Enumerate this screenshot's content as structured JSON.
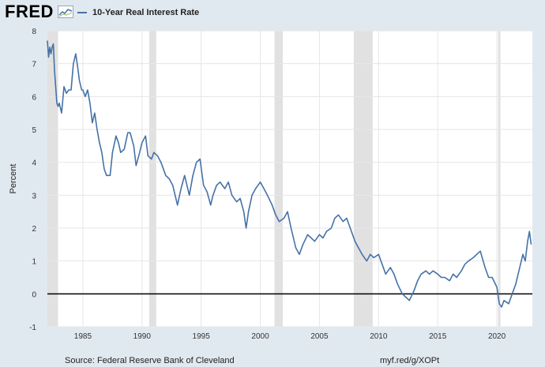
{
  "header": {
    "logo_text": "FRED",
    "series_name": "10-Year Real Interest Rate",
    "series_color": "#4572a7"
  },
  "footer": {
    "source": "Source: Federal Reserve Bank of Cleveland",
    "link": "myf.red/g/XOPt"
  },
  "chart_data": {
    "type": "line",
    "title": "",
    "xlabel": "",
    "ylabel": "Percent",
    "xlim": [
      1982.0,
      2023.0
    ],
    "ylim": [
      -1,
      8
    ],
    "yticks": [
      "-1",
      "0",
      "1",
      "2",
      "3",
      "4",
      "5",
      "6",
      "7",
      "8"
    ],
    "xticks": [
      "1985",
      "1990",
      "1995",
      "2000",
      "2005",
      "2010",
      "2015",
      "2020"
    ],
    "grid": true,
    "zero_line": true,
    "recessions": [
      [
        1982.0,
        1982.9
      ],
      [
        1990.6,
        1991.2
      ],
      [
        2001.2,
        2001.9
      ],
      [
        2007.9,
        2009.5
      ],
      [
        2020.1,
        2020.3
      ]
    ],
    "series": [
      {
        "name": "10-Year Real Interest Rate",
        "x": [
          1982.0,
          1982.1,
          1982.2,
          1982.3,
          1982.4,
          1982.5,
          1982.6,
          1982.7,
          1982.8,
          1982.9,
          1983.0,
          1983.2,
          1983.4,
          1983.6,
          1983.8,
          1984.0,
          1984.2,
          1984.4,
          1984.6,
          1984.7,
          1984.9,
          1985.0,
          1985.2,
          1985.4,
          1985.6,
          1985.8,
          1986.0,
          1986.2,
          1986.4,
          1986.6,
          1986.8,
          1987.0,
          1987.3,
          1987.5,
          1987.8,
          1988.0,
          1988.2,
          1988.5,
          1988.8,
          1989.0,
          1989.3,
          1989.5,
          1989.8,
          1990.0,
          1990.3,
          1990.5,
          1990.8,
          1991.0,
          1991.3,
          1991.6,
          1992.0,
          1992.3,
          1992.6,
          1993.0,
          1993.3,
          1993.6,
          1994.0,
          1994.3,
          1994.6,
          1994.9,
          1995.2,
          1995.5,
          1995.8,
          1996.0,
          1996.3,
          1996.6,
          1997.0,
          1997.3,
          1997.6,
          1998.0,
          1998.3,
          1998.6,
          1998.8,
          1999.0,
          1999.3,
          1999.6,
          2000.0,
          2000.3,
          2000.6,
          2001.0,
          2001.3,
          2001.6,
          2002.0,
          2002.3,
          2002.6,
          2003.0,
          2003.3,
          2003.6,
          2004.0,
          2004.3,
          2004.6,
          2005.0,
          2005.3,
          2005.6,
          2006.0,
          2006.3,
          2006.6,
          2007.0,
          2007.3,
          2007.6,
          2008.0,
          2008.3,
          2008.6,
          2009.0,
          2009.3,
          2009.6,
          2010.0,
          2010.3,
          2010.6,
          2011.0,
          2011.3,
          2011.6,
          2012.0,
          2012.3,
          2012.6,
          2013.0,
          2013.3,
          2013.6,
          2014.0,
          2014.3,
          2014.6,
          2015.0,
          2015.3,
          2015.6,
          2016.0,
          2016.3,
          2016.6,
          2017.0,
          2017.3,
          2017.6,
          2018.0,
          2018.3,
          2018.6,
          2019.0,
          2019.3,
          2019.6,
          2020.0,
          2020.2,
          2020.4,
          2020.6,
          2021.0,
          2021.3,
          2021.6,
          2022.0,
          2022.2,
          2022.4,
          2022.6,
          2022.75,
          2022.9
        ],
        "values": [
          7.7,
          7.2,
          7.5,
          7.3,
          7.5,
          7.6,
          6.8,
          6.3,
          5.8,
          5.7,
          5.8,
          5.5,
          6.3,
          6.1,
          6.2,
          6.2,
          7.0,
          7.3,
          6.8,
          6.5,
          6.2,
          6.2,
          6.0,
          6.2,
          5.8,
          5.2,
          5.5,
          5.0,
          4.6,
          4.3,
          3.8,
          3.6,
          3.6,
          4.3,
          4.8,
          4.6,
          4.3,
          4.4,
          4.9,
          4.9,
          4.5,
          3.9,
          4.3,
          4.6,
          4.8,
          4.2,
          4.1,
          4.3,
          4.2,
          4.0,
          3.6,
          3.5,
          3.3,
          2.7,
          3.2,
          3.6,
          3.0,
          3.6,
          4.0,
          4.1,
          3.3,
          3.1,
          2.7,
          3.0,
          3.3,
          3.4,
          3.2,
          3.4,
          3.0,
          2.8,
          2.9,
          2.5,
          2.0,
          2.5,
          3.0,
          3.2,
          3.4,
          3.2,
          3.0,
          2.7,
          2.4,
          2.2,
          2.3,
          2.5,
          2.0,
          1.4,
          1.2,
          1.5,
          1.8,
          1.7,
          1.6,
          1.8,
          1.7,
          1.9,
          2.0,
          2.3,
          2.4,
          2.2,
          2.3,
          2.0,
          1.6,
          1.4,
          1.2,
          1.0,
          1.2,
          1.1,
          1.2,
          0.9,
          0.6,
          0.8,
          0.6,
          0.3,
          0.0,
          -0.1,
          -0.2,
          0.1,
          0.4,
          0.6,
          0.7,
          0.6,
          0.7,
          0.6,
          0.5,
          0.5,
          0.4,
          0.6,
          0.5,
          0.7,
          0.9,
          1.0,
          1.1,
          1.2,
          1.3,
          0.8,
          0.5,
          0.5,
          0.2,
          -0.3,
          -0.4,
          -0.2,
          -0.3,
          0.0,
          0.3,
          0.9,
          1.2,
          1.0,
          1.6,
          1.9,
          1.5
        ]
      }
    ]
  }
}
